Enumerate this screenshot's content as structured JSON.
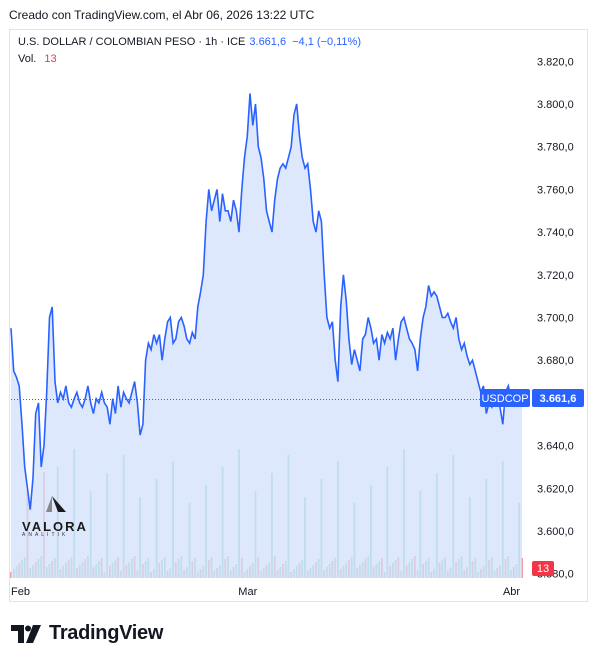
{
  "credit": "Creado con TradingView.com, el Abr 06, 2026 13:22 UTC",
  "legend": {
    "symbol": "U.S. DOLLAR / COLOMBIAN PESO · 1h · ICE",
    "price": "3.661,6",
    "change": "−4,1 (−0,11%)",
    "vol_label": "Vol.",
    "vol_value": "13"
  },
  "badges": {
    "symbol": "USDCOP",
    "price": "3.661,6",
    "volume": "13"
  },
  "footer": {
    "brand": "TradingView"
  },
  "watermark": {
    "name": "VALORA",
    "sub": "ANALITIK"
  },
  "colors": {
    "line": "#2962ff",
    "area": "#d3e0fb",
    "vol_up": "#22ab94",
    "vol_down": "#f23645",
    "badge": "#2962ff",
    "vol_badge": "#f23645"
  },
  "chart_data": {
    "type": "area",
    "title": "U.S. DOLLAR / COLOMBIAN PESO · 1h · ICE",
    "xlabel": "",
    "ylabel": "",
    "x_ticks": [
      {
        "label": "Feb",
        "index": 0
      },
      {
        "label": "Mar",
        "index": 84
      },
      {
        "label": "Abr",
        "index": 180
      }
    ],
    "y_ticks": [
      {
        "value": 3820,
        "label": "3.820,0"
      },
      {
        "value": 3800,
        "label": "3.800,0"
      },
      {
        "value": 3780,
        "label": "3.780,0"
      },
      {
        "value": 3760,
        "label": "3.760,0"
      },
      {
        "value": 3740,
        "label": "3.740,0"
      },
      {
        "value": 3720,
        "label": "3.720,0"
      },
      {
        "value": 3700,
        "label": "3.700,0"
      },
      {
        "value": 3680,
        "label": "3.680,0"
      },
      {
        "value": 3660,
        "label": ""
      },
      {
        "value": 3640,
        "label": "3.640,0"
      },
      {
        "value": 3620,
        "label": "3.620,0"
      },
      {
        "value": 3600,
        "label": "3.600,0"
      },
      {
        "value": 3580,
        "label": "3.580,0"
      }
    ],
    "ylim": [
      3578,
      3830
    ],
    "last_price": 3661.6,
    "grid": false,
    "series": [
      {
        "name": "USDCOP",
        "values": [
          3695,
          3675,
          3672,
          3668,
          3650,
          3630,
          3620,
          3610,
          3625,
          3655,
          3660,
          3630,
          3640,
          3665,
          3700,
          3705,
          3670,
          3660,
          3665,
          3662,
          3668,
          3660,
          3658,
          3662,
          3665,
          3660,
          3658,
          3662,
          3668,
          3660,
          3655,
          3662,
          3660,
          3665,
          3660,
          3658,
          3650,
          3662,
          3655,
          3668,
          3658,
          3665,
          3662,
          3660,
          3665,
          3670,
          3660,
          3645,
          3650,
          3680,
          3688,
          3685,
          3692,
          3688,
          3692,
          3680,
          3690,
          3698,
          3700,
          3688,
          3690,
          3698,
          3700,
          3696,
          3690,
          3688,
          3693,
          3690,
          3705,
          3712,
          3720,
          3745,
          3760,
          3750,
          3755,
          3760,
          3745,
          3758,
          3750,
          3750,
          3745,
          3755,
          3750,
          3740,
          3760,
          3775,
          3785,
          3805,
          3790,
          3800,
          3780,
          3775,
          3765,
          3750,
          3745,
          3740,
          3755,
          3765,
          3770,
          3772,
          3770,
          3775,
          3780,
          3795,
          3800,
          3785,
          3775,
          3770,
          3772,
          3760,
          3745,
          3740,
          3750,
          3745,
          3720,
          3700,
          3695,
          3698,
          3680,
          3670,
          3705,
          3720,
          3708,
          3690,
          3678,
          3685,
          3680,
          3675,
          3690,
          3692,
          3700,
          3695,
          3688,
          3690,
          3680,
          3692,
          3688,
          3693,
          3690,
          3695,
          3680,
          3690,
          3698,
          3700,
          3695,
          3690,
          3688,
          3685,
          3675,
          3690,
          3700,
          3705,
          3715,
          3710,
          3712,
          3710,
          3705,
          3700,
          3700,
          3702,
          3698,
          3695,
          3700,
          3690,
          3685,
          3688,
          3682,
          3678,
          3680,
          3675,
          3670,
          3665,
          3668,
          3655,
          3660,
          3658,
          3662,
          3660,
          3658,
          3650,
          3665,
          3668,
          3662,
          3660,
          3662,
          3660,
          3661.6
        ]
      }
    ],
    "volume_series": {
      "name": "Vol.",
      "peak_days": [
        6,
        12,
        17,
        23,
        29,
        35,
        41,
        47,
        53,
        59,
        65,
        71,
        77,
        83,
        89,
        95,
        101,
        107,
        113,
        119,
        125,
        131,
        137,
        143,
        149,
        155,
        161,
        167,
        173,
        179,
        185,
        191,
        197
      ]
    }
  }
}
